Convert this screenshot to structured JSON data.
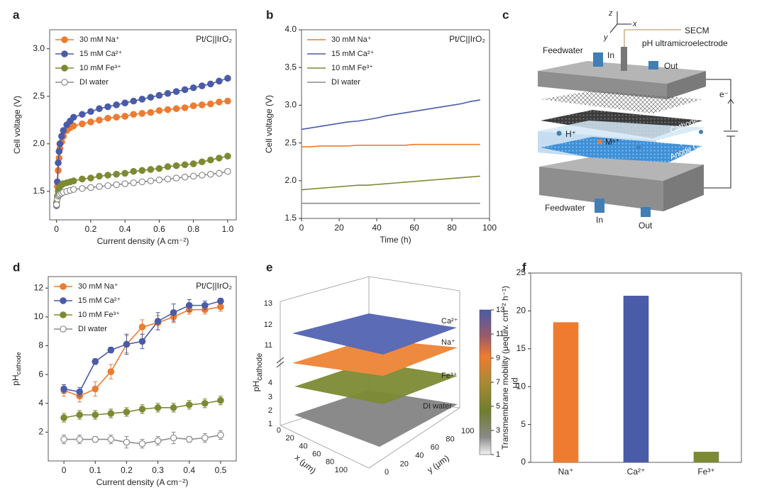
{
  "panel_labels": [
    "a",
    "b",
    "c",
    "d",
    "e",
    "f"
  ],
  "chart_data": [
    {
      "type": "line",
      "marker": "o",
      "legend": "upper left",
      "annotation": "Pt/C||IrO₂",
      "x_label": "Current density (A cm⁻²)",
      "y_label": "Cell voltage (V)",
      "xlim": [
        -0.04,
        1.05
      ],
      "ylim": [
        1.2,
        3.2
      ],
      "xticks": [
        0,
        0.2,
        0.4,
        0.6,
        0.8,
        {
          "value": 1,
          "label": "1.0"
        }
      ],
      "yticks": [
        1.5,
        {
          "value": 2,
          "label": "2.0"
        },
        2.5,
        {
          "value": 3,
          "label": "3.0"
        }
      ],
      "x": [
        0,
        0.005,
        0.01,
        0.015,
        0.02,
        0.03,
        0.04,
        0.06,
        0.08,
        0.1,
        0.15,
        0.2,
        0.25,
        0.3,
        0.35,
        0.4,
        0.45,
        0.5,
        0.55,
        0.6,
        0.65,
        0.7,
        0.75,
        0.8,
        0.85,
        0.9,
        0.95,
        1.0
      ],
      "series": [
        {
          "name": "30 mM Na⁺",
          "color": "#ee7b30",
          "values": [
            1.38,
            1.55,
            1.72,
            1.85,
            1.95,
            2.02,
            2.08,
            2.14,
            2.17,
            2.19,
            2.21,
            2.23,
            2.25,
            2.27,
            2.28,
            2.29,
            2.31,
            2.32,
            2.33,
            2.35,
            2.36,
            2.37,
            2.38,
            2.4,
            2.41,
            2.42,
            2.44,
            2.45
          ]
        },
        {
          "name": "15 mM Ca²⁺",
          "color": "#4a5ba8",
          "values": [
            1.35,
            1.6,
            1.8,
            1.92,
            2.0,
            2.08,
            2.14,
            2.2,
            2.24,
            2.28,
            2.31,
            2.34,
            2.37,
            2.39,
            2.41,
            2.43,
            2.45,
            2.47,
            2.49,
            2.51,
            2.53,
            2.55,
            2.57,
            2.59,
            2.61,
            2.63,
            2.66,
            2.69
          ]
        },
        {
          "name": "10 mM Fe³⁺",
          "color": "#7c8a33",
          "values": [
            1.38,
            1.45,
            1.5,
            1.53,
            1.55,
            1.57,
            1.58,
            1.59,
            1.6,
            1.61,
            1.63,
            1.64,
            1.66,
            1.67,
            1.68,
            1.69,
            1.71,
            1.72,
            1.73,
            1.74,
            1.76,
            1.77,
            1.78,
            1.79,
            1.81,
            1.83,
            1.85,
            1.87
          ]
        },
        {
          "name": "DI water",
          "color": "#8c8c8c",
          "marker_face": "#ffffff",
          "values": [
            1.36,
            1.42,
            1.45,
            1.46,
            1.47,
            1.48,
            1.49,
            1.5,
            1.51,
            1.52,
            1.53,
            1.54,
            1.55,
            1.56,
            1.57,
            1.58,
            1.59,
            1.6,
            1.61,
            1.62,
            1.63,
            1.64,
            1.65,
            1.66,
            1.67,
            1.68,
            1.69,
            1.71
          ]
        }
      ]
    },
    {
      "type": "line",
      "legend": "upper left",
      "annotation": "Pt/C||IrO₂",
      "x_label": "Time (h)",
      "y_label": "Cell voltage (V)",
      "xlim": [
        0,
        100
      ],
      "ylim": [
        1.5,
        4.0
      ],
      "xticks": [
        0,
        20,
        40,
        60,
        80,
        100
      ],
      "yticks": [
        1.5,
        {
          "value": 2,
          "label": "2.0"
        },
        2.5,
        {
          "value": 3,
          "label": "3.0"
        },
        3.5,
        {
          "value": 4,
          "label": "4.0"
        }
      ],
      "x": [
        0,
        5,
        10,
        15,
        20,
        25,
        30,
        35,
        40,
        45,
        50,
        55,
        60,
        65,
        70,
        75,
        80,
        85,
        90,
        95
      ],
      "series": [
        {
          "name": "30 mM Na⁺",
          "color": "#ee7b30",
          "values": [
            2.45,
            2.45,
            2.46,
            2.46,
            2.46,
            2.46,
            2.47,
            2.47,
            2.47,
            2.47,
            2.47,
            2.47,
            2.48,
            2.48,
            2.48,
            2.48,
            2.48,
            2.48,
            2.48,
            2.48
          ]
        },
        {
          "name": "15 mM Ca²⁺",
          "color": "#4a5ba8",
          "values": [
            2.68,
            2.7,
            2.72,
            2.74,
            2.76,
            2.78,
            2.79,
            2.81,
            2.83,
            2.86,
            2.88,
            2.9,
            2.92,
            2.94,
            2.96,
            2.98,
            3.0,
            3.02,
            3.05,
            3.07
          ]
        },
        {
          "name": "10 mM Fe³⁺",
          "color": "#7c8a33",
          "values": [
            1.88,
            1.89,
            1.9,
            1.91,
            1.92,
            1.93,
            1.94,
            1.94,
            1.95,
            1.96,
            1.97,
            1.98,
            1.99,
            2.0,
            2.01,
            2.02,
            2.03,
            2.04,
            2.05,
            2.06
          ]
        },
        {
          "name": "DI water",
          "color": "#8c8c8c",
          "values": [
            1.7,
            1.7,
            1.7,
            1.7,
            1.7,
            1.7,
            1.7,
            1.7,
            1.7,
            1.7,
            1.7,
            1.7,
            1.7,
            1.7,
            1.7,
            1.7,
            1.7,
            1.7,
            1.7,
            1.7
          ]
        }
      ]
    },
    {
      "type": "line",
      "marker": "o",
      "legend": "upper left",
      "annotation": "Pt/C||IrO₂",
      "x_label": "Current density (A cm⁻²)",
      "y_label": "pH",
      "y_label_sub": "cathode",
      "xlim": [
        -0.05,
        0.55
      ],
      "ylim": [
        0,
        12.8
      ],
      "xticks": [
        0,
        0.1,
        0.2,
        0.3,
        0.4,
        0.5
      ],
      "yticks": [
        2,
        4,
        6,
        8,
        10,
        12
      ],
      "x": [
        0,
        0.05,
        0.1,
        0.15,
        0.2,
        0.25,
        0.3,
        0.35,
        0.4,
        0.45,
        0.5
      ],
      "series": [
        {
          "name": "30 mM Na⁺",
          "color": "#ee7b30",
          "values": [
            4.9,
            4.5,
            5.0,
            6.2,
            8.1,
            9.3,
            9.6,
            10.0,
            10.5,
            10.5,
            10.7
          ],
          "errors": [
            0.4,
            0.4,
            0.5,
            0.5,
            0.6,
            0.5,
            0.5,
            0.4,
            0.3,
            0.3,
            0.3
          ]
        },
        {
          "name": "15 mM Ca²⁺",
          "color": "#4a5ba8",
          "values": [
            5.0,
            4.8,
            6.9,
            7.7,
            8.1,
            8.3,
            9.7,
            10.3,
            10.8,
            10.8,
            11.1
          ],
          "errors": [
            0.3,
            0.3,
            0.2,
            0.2,
            0.7,
            0.5,
            0.6,
            0.6,
            0.4,
            0.3,
            0.2
          ]
        },
        {
          "name": "10 mM Fe³⁺",
          "color": "#7c8a33",
          "values": [
            3.0,
            3.2,
            3.2,
            3.3,
            3.4,
            3.6,
            3.7,
            3.7,
            3.9,
            4.0,
            4.2
          ],
          "errors": [
            0.3,
            0.3,
            0.3,
            0.3,
            0.3,
            0.3,
            0.3,
            0.3,
            0.3,
            0.3,
            0.3
          ]
        },
        {
          "name": "DI water",
          "color": "#8c8c8c",
          "marker_face": "#ffffff",
          "values": [
            1.5,
            1.5,
            1.5,
            1.5,
            1.3,
            1.2,
            1.4,
            1.6,
            1.5,
            1.6,
            1.8
          ],
          "errors": [
            0.3,
            0.3,
            0.2,
            0.3,
            0.4,
            0.3,
            0.3,
            0.4,
            0.2,
            0.3,
            0.3
          ]
        }
      ]
    },
    {
      "type": "bar",
      "y_label": "Transmembrane mobility (μequiv. cm⁻² h⁻¹)",
      "categories": [
        "Na⁺",
        "Ca²⁺",
        "Fe³⁺"
      ],
      "values": [
        18.5,
        22.0,
        1.4
      ],
      "colors": [
        "#ee7b30",
        "#4a5ba8",
        "#7c8a33"
      ],
      "ylim": [
        0,
        25
      ],
      "yticks": [
        0,
        5,
        10,
        15,
        20,
        25
      ]
    }
  ],
  "diagram_c": {
    "secm": "SECM",
    "probe": "pH ultramicroelectrode",
    "feed_top": "Feedwater",
    "in_top": "In",
    "out_top": "Out",
    "electron": "e⁻",
    "proton": "H⁺",
    "metal": "Mⁿ⁺",
    "cathode": "Cathode CL",
    "pem": "PEM",
    "anode": "Anode CL",
    "feed_bottom": "Feedwater",
    "in_bottom": "In",
    "out_bottom": "Out",
    "z": "z",
    "y": "y",
    "x": "x"
  },
  "panel_e": {
    "z_label": "pH",
    "z_label_sub": "cathode",
    "x_label": "x (μm)",
    "y_label": "y (μm)",
    "zticks": [
      13,
      12,
      11,
      4,
      3,
      2,
      1
    ],
    "xticks": [
      0,
      20,
      40,
      60,
      80,
      100
    ],
    "yticks": [
      0,
      20,
      40,
      60,
      80,
      100
    ],
    "colorbar_label": "pH",
    "colorbar_lim": [
      1,
      13
    ],
    "colorbar_ticks": [
      1,
      3,
      5,
      7,
      9,
      11,
      13
    ],
    "layers": [
      "Ca²⁺",
      "Na⁺",
      "Fe³⁺",
      "DI water"
    ]
  }
}
